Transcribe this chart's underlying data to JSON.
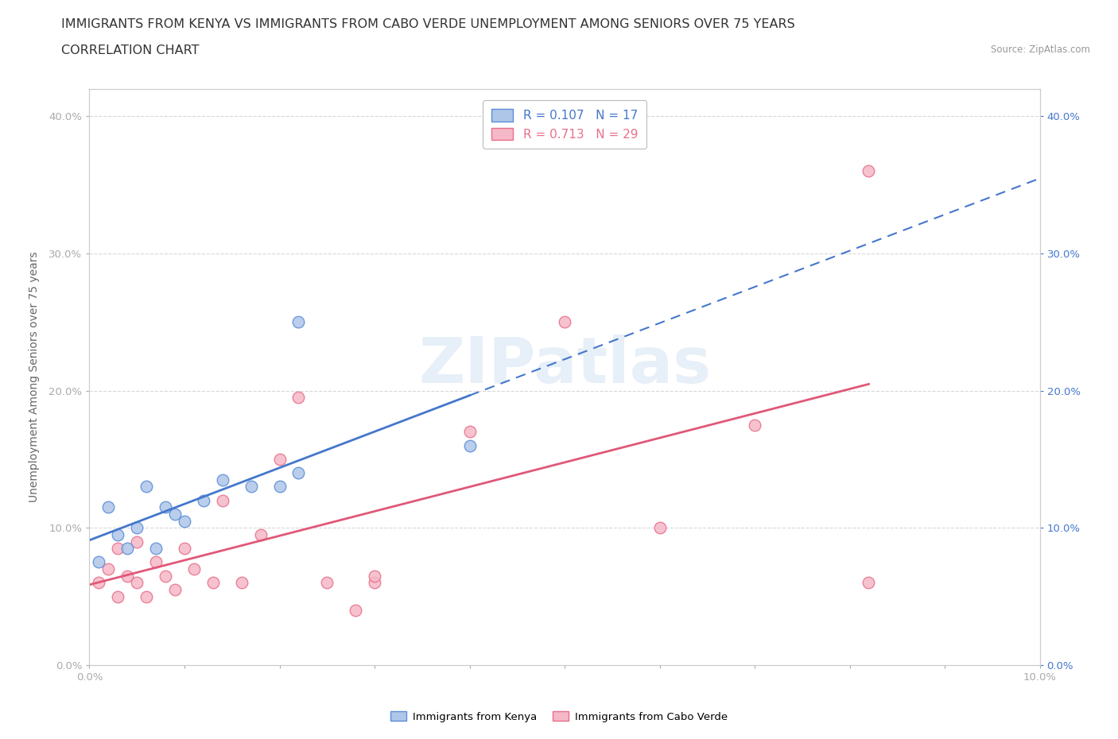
{
  "title_line1": "IMMIGRANTS FROM KENYA VS IMMIGRANTS FROM CABO VERDE UNEMPLOYMENT AMONG SENIORS OVER 75 YEARS",
  "title_line2": "CORRELATION CHART",
  "source": "Source: ZipAtlas.com",
  "ylabel": "Unemployment Among Seniors over 75 years",
  "xlim": [
    0.0,
    0.1
  ],
  "ylim": [
    0.0,
    0.42
  ],
  "xticks": [
    0.0,
    0.01,
    0.02,
    0.03,
    0.04,
    0.05,
    0.06,
    0.07,
    0.08,
    0.09,
    0.1
  ],
  "yticks": [
    0.0,
    0.1,
    0.2,
    0.3,
    0.4
  ],
  "ytick_labels": [
    "0.0%",
    "10.0%",
    "20.0%",
    "30.0%",
    "40.0%"
  ],
  "xtick_labels": [
    "0.0%",
    "",
    "",
    "",
    "",
    "",
    "",
    "",
    "",
    "",
    "10.0%"
  ],
  "kenya_R": 0.107,
  "kenya_N": 17,
  "caboverde_R": 0.713,
  "caboverde_N": 29,
  "kenya_color": "#aec6e8",
  "caboverde_color": "#f5b8c8",
  "kenya_edge_color": "#5b8dd9",
  "caboverde_edge_color": "#e8708a",
  "kenya_line_color": "#4477cc",
  "caboverde_line_color": "#e05878",
  "watermark": "ZIPatlas",
  "kenya_x": [
    0.001,
    0.002,
    0.003,
    0.004,
    0.005,
    0.006,
    0.007,
    0.008,
    0.009,
    0.01,
    0.012,
    0.014,
    0.017,
    0.02,
    0.022,
    0.022,
    0.04
  ],
  "kenya_y": [
    0.075,
    0.115,
    0.095,
    0.085,
    0.1,
    0.13,
    0.085,
    0.115,
    0.11,
    0.105,
    0.12,
    0.135,
    0.13,
    0.13,
    0.14,
    0.25,
    0.16
  ],
  "caboverde_x": [
    0.001,
    0.002,
    0.003,
    0.003,
    0.004,
    0.005,
    0.005,
    0.006,
    0.007,
    0.008,
    0.009,
    0.01,
    0.011,
    0.013,
    0.014,
    0.016,
    0.018,
    0.02,
    0.022,
    0.025,
    0.028,
    0.03,
    0.03,
    0.04,
    0.05,
    0.06,
    0.07,
    0.082,
    0.082
  ],
  "caboverde_y": [
    0.06,
    0.07,
    0.05,
    0.085,
    0.065,
    0.06,
    0.09,
    0.05,
    0.075,
    0.065,
    0.055,
    0.085,
    0.07,
    0.06,
    0.12,
    0.06,
    0.095,
    0.15,
    0.195,
    0.06,
    0.04,
    0.06,
    0.065,
    0.17,
    0.25,
    0.1,
    0.175,
    0.06,
    0.36
  ],
  "background_color": "#ffffff",
  "grid_color": "#d8d8d8",
  "marker_size": 110,
  "title_fontsize": 11.5,
  "axis_label_fontsize": 10,
  "tick_fontsize": 9.5,
  "legend_fontsize": 11
}
